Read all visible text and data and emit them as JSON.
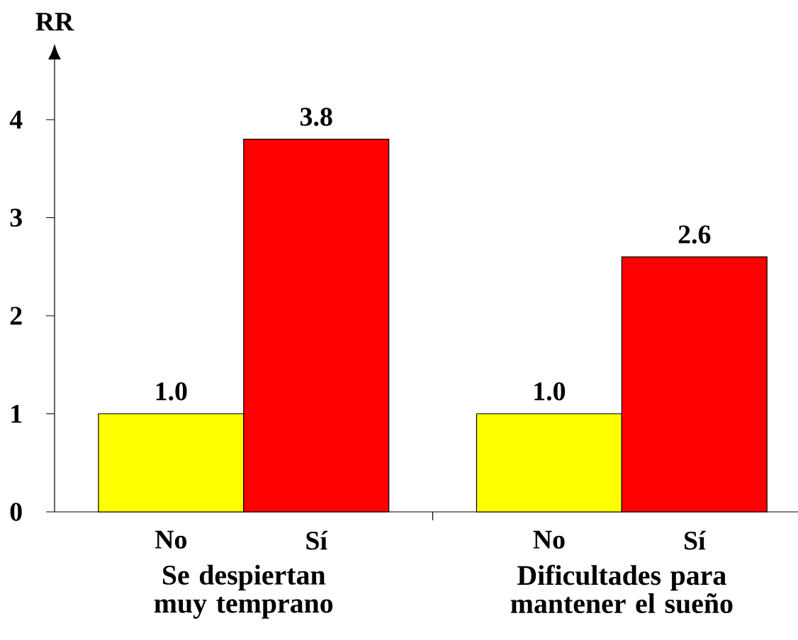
{
  "chart_data": {
    "type": "bar",
    "ylabel": "RR",
    "categories": [
      "Se despiertan muy temprano",
      "Dificultades para mantener el sueño"
    ],
    "series": [
      {
        "name": "No",
        "color": "#ffff00",
        "values": [
          1,
          1
        ],
        "value_labels": [
          "1.0",
          "1.0"
        ]
      },
      {
        "name": "Sí",
        "color": "#ff0000",
        "values": [
          3.8,
          2.6
        ],
        "value_labels": [
          "3.8",
          "2.6"
        ]
      }
    ],
    "ylim": [
      0,
      4.6
    ],
    "yticks": [
      0,
      1,
      2,
      3,
      4
    ],
    "grid": false,
    "legend": false
  }
}
